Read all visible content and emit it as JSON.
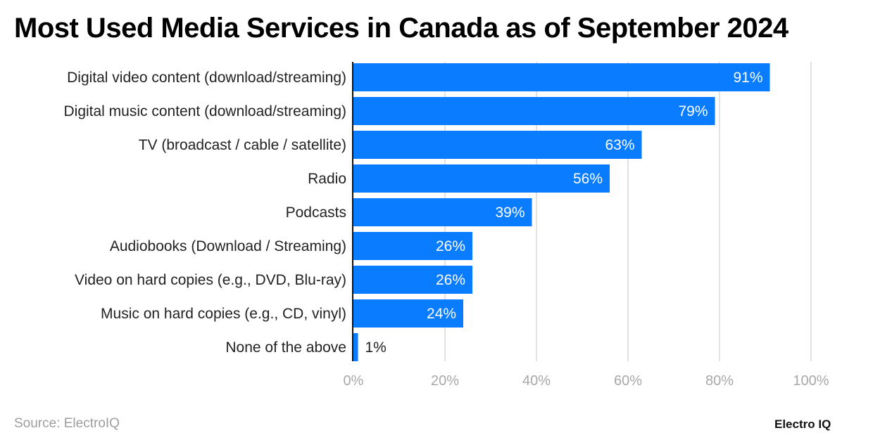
{
  "chart_data": {
    "type": "bar",
    "orientation": "horizontal",
    "title": "Most Used Media Services in Canada as of September 2024",
    "categories": [
      "Digital video content (download/streaming)",
      "Digital music content (download/streaming)",
      "TV (broadcast / cable / satellite)",
      "Radio",
      "Podcasts",
      "Audiobooks (Download / Streaming)",
      "Video on hard copies (e.g., DVD, Blu-ray)",
      "Music on hard copies (e.g., CD, vinyl)",
      "None of the above"
    ],
    "values": [
      91,
      79,
      63,
      56,
      39,
      26,
      26,
      24,
      1
    ],
    "data_labels": [
      "91%",
      "79%",
      "63%",
      "56%",
      "39%",
      "26%",
      "26%",
      "24%",
      "1%"
    ],
    "xlim": [
      0,
      100
    ],
    "x_ticks": [
      0,
      20,
      40,
      60,
      80,
      100
    ],
    "x_tick_labels": [
      "0%",
      "20%",
      "40%",
      "60%",
      "80%",
      "100%"
    ],
    "grid": true,
    "bar_color": "#0a7cff"
  },
  "source": "Source: ElectroIQ",
  "logo": "Electro IQ"
}
